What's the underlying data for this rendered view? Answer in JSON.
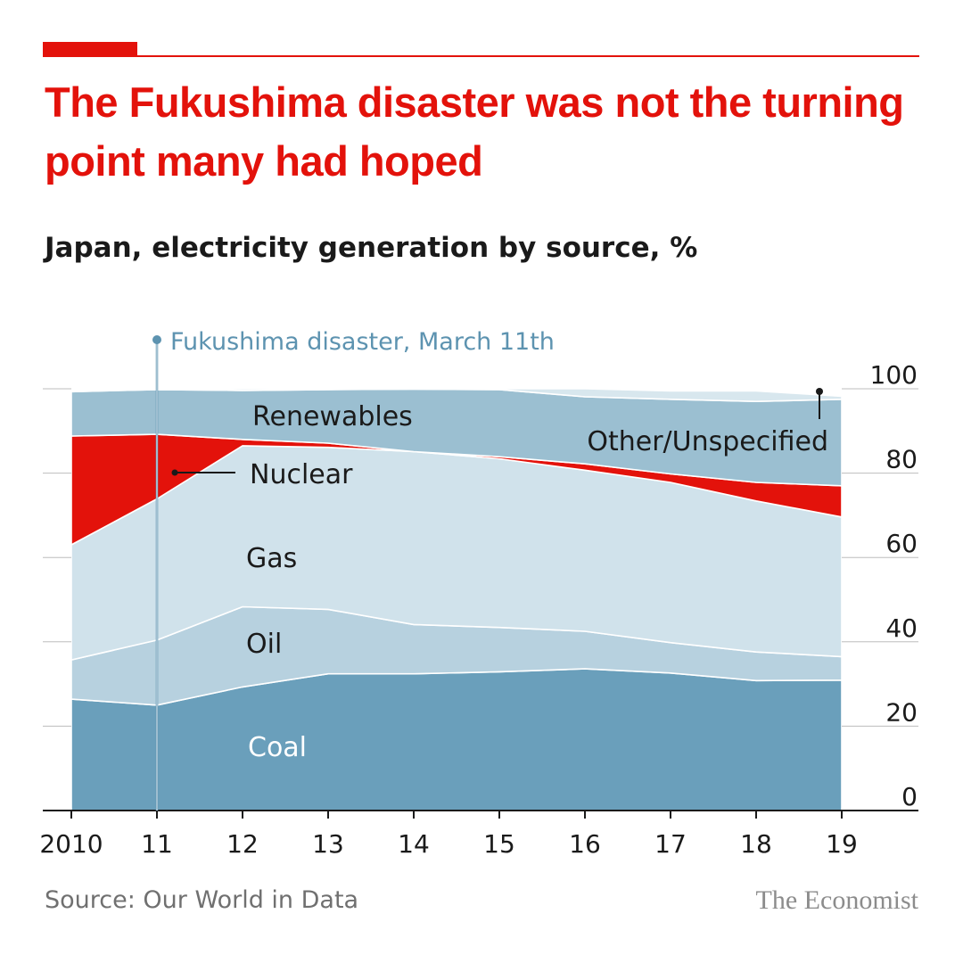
{
  "title": "The Fukushima disaster was not the turning point many had hoped",
  "subtitle": "Japan, electricity generation by source, %",
  "source": "Source: Our World in Data",
  "brand": "The Economist",
  "annotation": "Fukushima disaster, March 11th",
  "colors": {
    "accent": "#e3120b",
    "coal": "#6a9fbb",
    "oil": "#b7d1df",
    "gas": "#d0e2eb",
    "nuclear": "#e3120b",
    "renewables": "#9bbfd1",
    "other": "#d8e7ee",
    "annotation": "#5d93b0"
  },
  "chart_data": {
    "type": "area",
    "stacked": true,
    "x": [
      2010,
      2011,
      2012,
      2013,
      2014,
      2015,
      2016,
      2017,
      2018,
      2019
    ],
    "x_tick_labels": [
      "2010",
      "11",
      "12",
      "13",
      "14",
      "15",
      "16",
      "17",
      "18",
      "19"
    ],
    "y_ticks": [
      0,
      20,
      40,
      60,
      80,
      100
    ],
    "ylim": [
      0,
      100
    ],
    "y_axis_side": "right",
    "grid": true,
    "series": [
      {
        "name": "Coal",
        "key": "coal",
        "values": [
          26.4,
          25.0,
          29.3,
          32.4,
          32.4,
          32.9,
          33.6,
          32.6,
          30.8,
          30.9
        ]
      },
      {
        "name": "Oil",
        "key": "oil",
        "values": [
          9.3,
          15.4,
          19.0,
          15.3,
          11.7,
          10.5,
          8.9,
          7.2,
          6.8,
          5.6
        ]
      },
      {
        "name": "Gas",
        "key": "gas",
        "values": [
          27.3,
          33.5,
          38.2,
          38.4,
          41.0,
          40.0,
          38.2,
          38.0,
          35.8,
          33.1
        ]
      },
      {
        "name": "Nuclear",
        "key": "nuclear",
        "values": [
          25.8,
          15.3,
          1.5,
          1.0,
          0.0,
          0.5,
          1.5,
          2.0,
          4.4,
          7.4
        ]
      },
      {
        "name": "Renewables",
        "key": "renewables",
        "values": [
          10.5,
          10.6,
          11.6,
          12.7,
          14.8,
          15.9,
          15.9,
          17.7,
          19.2,
          20.5
        ]
      },
      {
        "name": "Other/Unspecified",
        "key": "other",
        "values": [
          0.0,
          0.0,
          0.4,
          0.2,
          0.1,
          0.2,
          1.9,
          2.0,
          2.5,
          0.7
        ]
      }
    ],
    "annotations": [
      {
        "text": "Fukushima disaster, March 11th",
        "x": 2011.0
      }
    ]
  }
}
